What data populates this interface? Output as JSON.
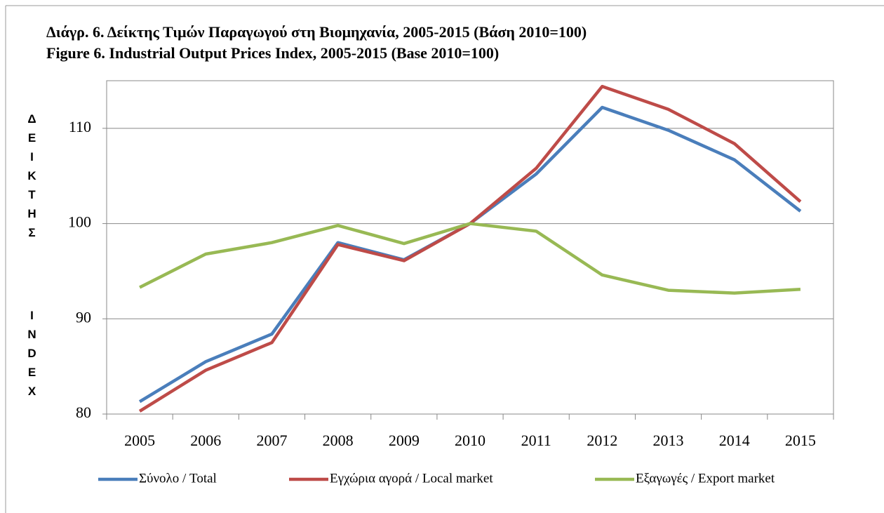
{
  "chart_data": {
    "type": "line",
    "title": "Διάγρ. 6. Δείκτης Τιμών Παραγωγού στη Βιομηχανία, 2005-2015 (Βάση 2010=100)",
    "subtitle": "Figure 6. Industrial Output Prices Index, 2005-2015 (Base 2010=100)",
    "ylabel": [
      "ΔΕΙΚΤΗΣ",
      "INDEX"
    ],
    "categories": [
      "2005",
      "2006",
      "2007",
      "2008",
      "2009",
      "2010",
      "2011",
      "2012",
      "2013",
      "2014",
      "2015"
    ],
    "series": [
      {
        "name": "Σύνολο / Total",
        "color": "#4a7ebb",
        "values": [
          81.3,
          85.5,
          88.4,
          98.0,
          96.2,
          100,
          105.2,
          112.2,
          109.8,
          106.7,
          101.3
        ]
      },
      {
        "name": "Εγχώρια αγορά / Local market",
        "color": "#be4b48",
        "values": [
          80.3,
          84.6,
          87.5,
          97.8,
          96.1,
          100,
          105.8,
          114.4,
          112.0,
          108.4,
          102.3
        ]
      },
      {
        "name": "Εξαγωγές / Export market",
        "color": "#98b954",
        "values": [
          93.3,
          96.8,
          98.0,
          99.8,
          97.9,
          100,
          99.2,
          94.6,
          93.0,
          92.7,
          93.1
        ]
      }
    ],
    "ylim": [
      80,
      115
    ],
    "yticks": [
      80,
      90,
      100,
      110
    ],
    "grid": true,
    "legend": "bottom"
  }
}
